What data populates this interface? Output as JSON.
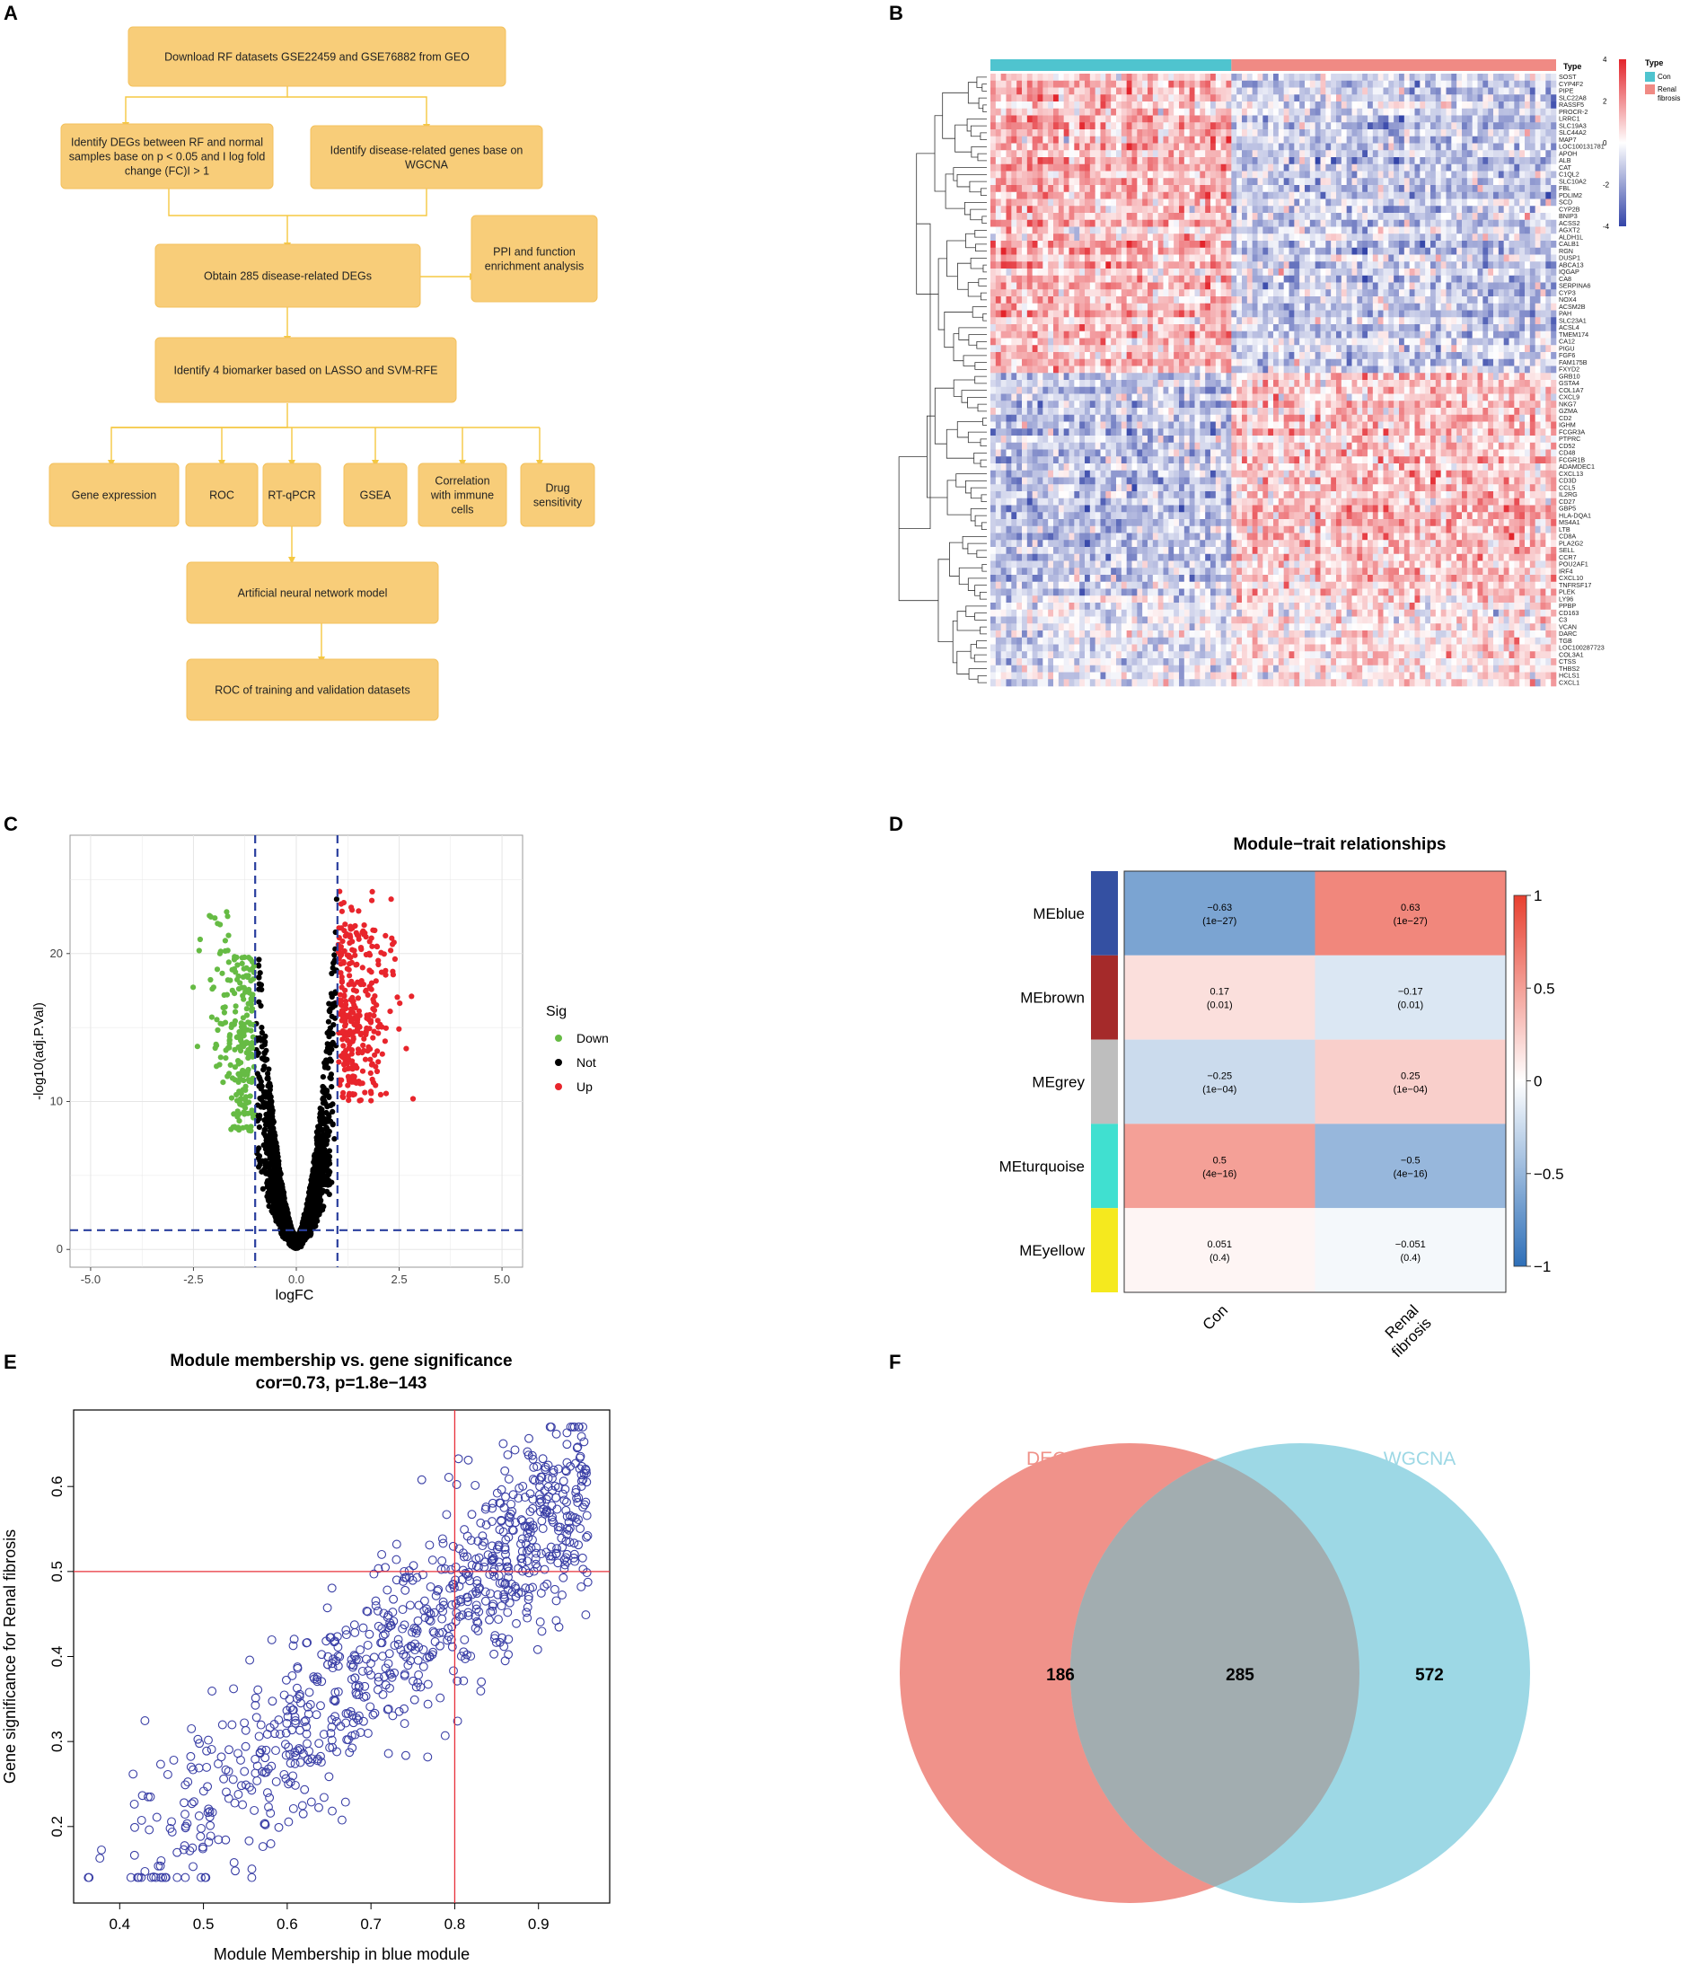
{
  "panel_labels": [
    "A",
    "B",
    "C",
    "D",
    "E",
    "F"
  ],
  "flowchart": {
    "nodes": [
      {
        "id": "download",
        "lines": [
          "Download RF datasets GSE22459 and GSE76882 from GEO"
        ]
      },
      {
        "id": "degs",
        "lines": [
          "Identify DEGs between RF and normal",
          "samples base on p < 0.05 and I log fold",
          "change (FC)I  >  1"
        ]
      },
      {
        "id": "wgcna",
        "lines": [
          "Identify disease-related genes base on",
          "WGCNA"
        ]
      },
      {
        "id": "obtain",
        "lines": [
          "Obtain 285 disease-related DEGs"
        ]
      },
      {
        "id": "ppi",
        "lines": [
          "PPI and function",
          "enrichment analysis"
        ]
      },
      {
        "id": "biomarker",
        "lines": [
          "Identify 4 biomarker based on  LASSO and SVM-RFE"
        ]
      },
      {
        "id": "gene_expr",
        "lines": [
          "Gene expression"
        ]
      },
      {
        "id": "roc",
        "lines": [
          "ROC"
        ]
      },
      {
        "id": "rtqpcr",
        "lines": [
          "RT-qPCR"
        ]
      },
      {
        "id": "gsea",
        "lines": [
          "GSEA"
        ]
      },
      {
        "id": "immune",
        "lines": [
          "Correlation",
          "with immune",
          "cells"
        ]
      },
      {
        "id": "drug",
        "lines": [
          "Drug",
          "sensitivity"
        ]
      },
      {
        "id": "ann",
        "lines": [
          "Artificial neural network model"
        ]
      },
      {
        "id": "roc_train",
        "lines": [
          "ROC of training and validation datasets"
        ]
      }
    ]
  },
  "heatmap": {
    "annotation_title": "Type",
    "legend_title": "Type",
    "legend_items": [
      {
        "label": "Con",
        "color": "#4fc4cf"
      },
      {
        "label": "Renal fibrosis",
        "color": "#f08a84"
      }
    ],
    "color_scale": {
      "min": -4,
      "max": 4,
      "ticks": [
        4,
        2,
        0,
        -2,
        -4
      ],
      "low": "#3344a8",
      "mid": "#ffffff",
      "high": "#e3242b"
    },
    "n_con_columns": 46,
    "n_rf_columns": 62,
    "genes": [
      "SOST",
      "CYP4F2",
      "PIPE",
      "SLC22A8",
      "RASSF5",
      "PROCR-2",
      "LRRC1",
      "SLC19A3",
      "SLC44A2",
      "MAP7",
      "LOC100131781",
      "APOH",
      "ALB",
      "CAT",
      "C1QL2",
      "SLC10A2",
      "FBL",
      "PDLIM2",
      "SCD",
      "CYP2B",
      "BNIP3",
      "ACSS2",
      "AGXT2",
      "ALDH1L",
      "CALB1",
      "RGN",
      "DUSP1",
      "ABCA13",
      "IQGAP",
      "CA8",
      "SERPINA6",
      "CYP3",
      "NOX4",
      "ACSM2B",
      "PAH",
      "SLC23A1",
      "ACSL4",
      "TMEM174",
      "CA12",
      "PIGU",
      "FGF6",
      "FAM175B",
      "FXYD2",
      "GRB10",
      "GSTA4",
      "COL1A7",
      "CXCL9",
      "NKG7",
      "GZMA",
      "CD2",
      "IGHM",
      "FCGR3A",
      "PTPRC",
      "CD52",
      "CD48",
      "FCGR1B",
      "ADAMDEC1",
      "CXCL13",
      "CD3D",
      "CCL5",
      "IL2RG",
      "CD27",
      "GBP5",
      "HLA-DQA1",
      "MS4A1",
      "LTB",
      "CD8A",
      "PLA2G2",
      "SELL",
      "CCR7",
      "POU2AF1",
      "IRF4",
      "CXCL10",
      "TNFRSF17",
      "PLEK",
      "LY96",
      "PPBP",
      "CD163",
      "C3",
      "VCAN",
      "DARC",
      "TGB",
      "LOC100287723",
      "COL3A1",
      "CTSS",
      "THBS2",
      "HCLS1",
      "CXCL1"
    ]
  },
  "volcano": {
    "chart_data": {
      "type": "scatter",
      "title": "",
      "xlabel": "logFC",
      "ylabel": "-log10(adj.P.Val)",
      "xlim": [
        -5.5,
        5.5
      ],
      "ylim": [
        -1.2,
        28
      ],
      "xticks": [
        -5.0,
        -2.5,
        0.0,
        2.5,
        5.0
      ],
      "xtick_labels": [
        "-5.0",
        "-2.5",
        "0.0",
        "2.5",
        "5.0"
      ],
      "yticks": [
        0,
        10,
        20
      ],
      "thresholds": {
        "logFC": [
          -1,
          1
        ],
        "neg_log10_p": 1.3
      },
      "legend_title": "Sig",
      "series": [
        {
          "name": "Down",
          "color": "#66bb44",
          "approx_count": 230
        },
        {
          "name": "Not",
          "color": "#000000",
          "approx_count": 2600
        },
        {
          "name": "Up",
          "color": "#e8252c",
          "approx_count": 320
        }
      ]
    }
  },
  "module_trait": {
    "chart_data": {
      "type": "heatmap",
      "title": "Module−trait relationships",
      "rows": [
        "MEblue",
        "MEbrown",
        "MEgrey",
        "MEturquoise",
        "MEyellow"
      ],
      "row_colors": [
        "#3450a2",
        "#a52a2a",
        "#bebebe",
        "#40e0d0",
        "#f5e91e"
      ],
      "columns": [
        "Con",
        "Renal fibrosis"
      ],
      "column_label_lines": [
        [
          "Con"
        ],
        [
          "Renal",
          "fibrosis"
        ]
      ],
      "values": [
        [
          -0.63,
          0.63
        ],
        [
          0.17,
          -0.17
        ],
        [
          -0.25,
          0.25
        ],
        [
          0.5,
          -0.5
        ],
        [
          0.051,
          -0.051
        ]
      ],
      "value_labels": [
        [
          "−0.63",
          "0.63"
        ],
        [
          "0.17",
          "−0.17"
        ],
        [
          "−0.25",
          "0.25"
        ],
        [
          "0.5",
          "−0.5"
        ],
        [
          "0.051",
          "−0.051"
        ]
      ],
      "pvalues": [
        [
          "(1e−27)",
          "(1e−27)"
        ],
        [
          "(0.01)",
          "(0.01)"
        ],
        [
          "(1e−04)",
          "(1e−04)"
        ],
        [
          "(4e−16)",
          "(4e−16)"
        ],
        [
          "(0.4)",
          "(0.4)"
        ]
      ],
      "colorbar": {
        "range": [
          -1,
          1
        ],
        "ticks": [
          1,
          0.5,
          0,
          -0.5,
          -1
        ],
        "tick_labels": [
          "1",
          "0.5",
          "0",
          "−0.5",
          "−1"
        ],
        "low": "#2e6fb8",
        "mid": "#ffffff",
        "high": "#e8402f"
      }
    }
  },
  "mm_gs": {
    "chart_data": {
      "type": "scatter",
      "title": "Module membership vs. gene significance",
      "subtitle": "cor=0.73, p=1.8e−143",
      "xlabel": "Module Membership in blue module",
      "ylabel": "Gene significance for  Renal fibrosis",
      "xlim": [
        0.345,
        0.985
      ],
      "ylim": [
        0.11,
        0.69
      ],
      "xticks": [
        0.4,
        0.5,
        0.6,
        0.7,
        0.8,
        0.9
      ],
      "xtick_labels": [
        "0.4",
        "0.5",
        "0.6",
        "0.7",
        "0.8",
        "0.9"
      ],
      "yticks": [
        0.2,
        0.3,
        0.4,
        0.5,
        0.6
      ],
      "ytick_labels": [
        "0.2",
        "0.3",
        "0.4",
        "0.5",
        "0.6"
      ],
      "hline": 0.5,
      "vline": 0.8,
      "point_color": "#3a3fa6",
      "line_color": "#e8303a",
      "approx_points": 870
    }
  },
  "venn": {
    "chart_data": {
      "type": "venn",
      "sets": [
        {
          "name": "DEGs",
          "only": 186,
          "color": "#f0928a"
        },
        {
          "name": "WGCNA",
          "only": 572,
          "color": "#9dd8e5"
        }
      ],
      "intersection": 285,
      "overlap_color": "#a2adb0"
    }
  }
}
